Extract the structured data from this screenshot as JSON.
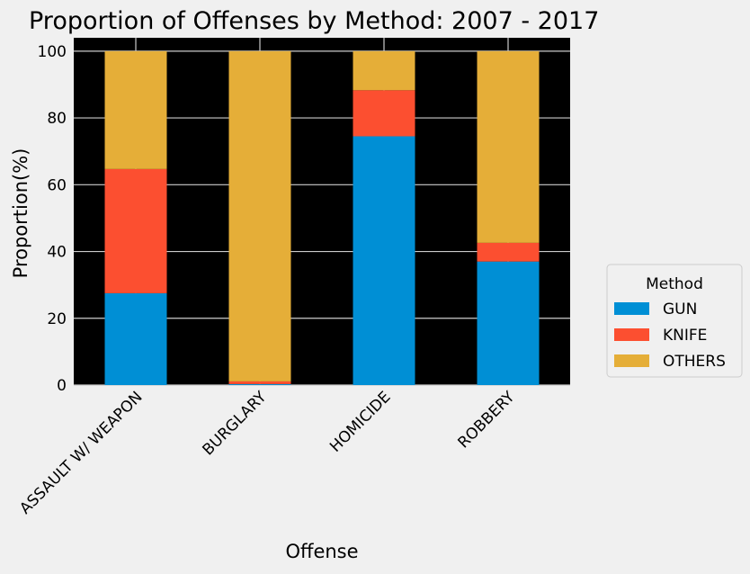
{
  "chart_data": {
    "type": "bar",
    "stacked": true,
    "title": "Proportion of Offenses by Method: 2007 - 2017",
    "xlabel": "Offense",
    "ylabel": "Proportion(%)",
    "ylim": [
      0,
      104
    ],
    "yticks": [
      "0",
      "20",
      "40",
      "60",
      "80",
      "100"
    ],
    "grid": true,
    "legend_title": "Method",
    "legend_position": "right",
    "categories": [
      "ASSAULT W/ WEAPON",
      "BURGLARY",
      "HOMICIDE",
      "ROBBERY"
    ],
    "series": [
      {
        "name": "GUN",
        "color": "#008fd5",
        "values": [
          27.5,
          0.3,
          74.5,
          37.0
        ]
      },
      {
        "name": "KNIFE",
        "color": "#fc4f30",
        "values": [
          37.2,
          0.8,
          13.8,
          5.6
        ]
      },
      {
        "name": "OTHERS",
        "color": "#e5ae38",
        "values": [
          35.3,
          98.9,
          11.7,
          57.4
        ]
      }
    ],
    "colors": {
      "figure_background": "#f0f0f0",
      "plot_background": "#000000",
      "grid": "#cbcbcb",
      "text": "#000000"
    }
  }
}
